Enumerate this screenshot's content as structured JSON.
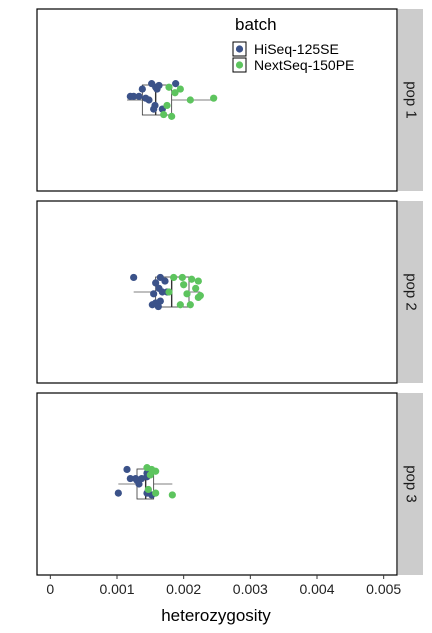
{
  "chart_data": {
    "type": "scatter",
    "subtype": "faceted jitter + boxplot",
    "xlabel": "heterozygosity",
    "xlim": [
      -0.0002,
      0.0052
    ],
    "xticks": [
      0,
      0.001,
      0.002,
      0.003,
      0.004,
      0.005
    ],
    "xtick_labels": [
      "0",
      "0.001",
      "0.002",
      "0.003",
      "0.004",
      "0.005"
    ],
    "grid": false,
    "legend": {
      "title": "batch",
      "placement": "top-right, inside first panel",
      "entries": [
        {
          "label": "HiSeq-125SE",
          "color": "#3b5289"
        },
        {
          "label": "NextSeq-150PE",
          "color": "#5dc45e"
        }
      ]
    },
    "facets": [
      {
        "label": "pop 1",
        "box": {
          "q1": 0.00138,
          "median": 0.00158,
          "q3": 0.00182,
          "whisker_low": 0.00115,
          "whisker_high": 0.00245
        },
        "points": [
          {
            "series": "HiSeq-125SE",
            "x": 0.00138,
            "y": 0.44
          },
          {
            "series": "HiSeq-125SE",
            "x": 0.00158,
            "y": 0.43
          },
          {
            "series": "HiSeq-125SE",
            "x": 0.00163,
            "y": 0.42
          },
          {
            "series": "HiSeq-125SE",
            "x": 0.00152,
            "y": 0.41
          },
          {
            "series": "HiSeq-125SE",
            "x": 0.00188,
            "y": 0.41
          },
          {
            "series": "HiSeq-125SE",
            "x": 0.0016,
            "y": 0.44
          },
          {
            "series": "HiSeq-125SE",
            "x": 0.00143,
            "y": 0.49
          },
          {
            "series": "HiSeq-125SE",
            "x": 0.00133,
            "y": 0.48
          },
          {
            "series": "HiSeq-125SE",
            "x": 0.00125,
            "y": 0.48
          },
          {
            "series": "HiSeq-125SE",
            "x": 0.0012,
            "y": 0.48
          },
          {
            "series": "HiSeq-125SE",
            "x": 0.00148,
            "y": 0.5
          },
          {
            "series": "HiSeq-125SE",
            "x": 0.00157,
            "y": 0.53
          },
          {
            "series": "HiSeq-125SE",
            "x": 0.00155,
            "y": 0.55
          },
          {
            "series": "HiSeq-125SE",
            "x": 0.00168,
            "y": 0.55
          },
          {
            "series": "NextSeq-150PE",
            "x": 0.00178,
            "y": 0.43
          },
          {
            "series": "NextSeq-150PE",
            "x": 0.00195,
            "y": 0.44
          },
          {
            "series": "NextSeq-150PE",
            "x": 0.00187,
            "y": 0.46
          },
          {
            "series": "NextSeq-150PE",
            "x": 0.0021,
            "y": 0.5
          },
          {
            "series": "NextSeq-150PE",
            "x": 0.00245,
            "y": 0.49
          },
          {
            "series": "NextSeq-150PE",
            "x": 0.00175,
            "y": 0.53
          },
          {
            "series": "NextSeq-150PE",
            "x": 0.0017,
            "y": 0.58
          },
          {
            "series": "NextSeq-150PE",
            "x": 0.00182,
            "y": 0.59
          }
        ]
      },
      {
        "label": "pop 2",
        "box": {
          "q1": 0.00158,
          "median": 0.00182,
          "q3": 0.00208,
          "whisker_low": 0.00125,
          "whisker_high": 0.00225
        },
        "points": [
          {
            "series": "HiSeq-125SE",
            "x": 0.00125,
            "y": 0.42
          },
          {
            "series": "HiSeq-125SE",
            "x": 0.00165,
            "y": 0.42
          },
          {
            "series": "HiSeq-125SE",
            "x": 0.00158,
            "y": 0.45
          },
          {
            "series": "HiSeq-125SE",
            "x": 0.00172,
            "y": 0.44
          },
          {
            "series": "HiSeq-125SE",
            "x": 0.00163,
            "y": 0.48
          },
          {
            "series": "HiSeq-125SE",
            "x": 0.00155,
            "y": 0.51
          },
          {
            "series": "HiSeq-125SE",
            "x": 0.00175,
            "y": 0.5
          },
          {
            "series": "HiSeq-125SE",
            "x": 0.00168,
            "y": 0.5
          },
          {
            "series": "HiSeq-125SE",
            "x": 0.00165,
            "y": 0.55
          },
          {
            "series": "HiSeq-125SE",
            "x": 0.00158,
            "y": 0.56
          },
          {
            "series": "HiSeq-125SE",
            "x": 0.00162,
            "y": 0.58
          },
          {
            "series": "HiSeq-125SE",
            "x": 0.00153,
            "y": 0.57
          },
          {
            "series": "NextSeq-150PE",
            "x": 0.00185,
            "y": 0.42
          },
          {
            "series": "NextSeq-150PE",
            "x": 0.00198,
            "y": 0.42
          },
          {
            "series": "NextSeq-150PE",
            "x": 0.00212,
            "y": 0.43
          },
          {
            "series": "NextSeq-150PE",
            "x": 0.00222,
            "y": 0.44
          },
          {
            "series": "NextSeq-150PE",
            "x": 0.002,
            "y": 0.46
          },
          {
            "series": "NextSeq-150PE",
            "x": 0.00218,
            "y": 0.48
          },
          {
            "series": "NextSeq-150PE",
            "x": 0.00178,
            "y": 0.5
          },
          {
            "series": "NextSeq-150PE",
            "x": 0.00205,
            "y": 0.51
          },
          {
            "series": "NextSeq-150PE",
            "x": 0.00225,
            "y": 0.52
          },
          {
            "series": "NextSeq-150PE",
            "x": 0.00222,
            "y": 0.53
          },
          {
            "series": "NextSeq-150PE",
            "x": 0.00195,
            "y": 0.57
          },
          {
            "series": "NextSeq-150PE",
            "x": 0.0021,
            "y": 0.57
          }
        ]
      },
      {
        "label": "pop 3",
        "box": {
          "q1": 0.0013,
          "median": 0.00143,
          "q3": 0.00155,
          "whisker_low": 0.00102,
          "whisker_high": 0.00183
        },
        "points": [
          {
            "series": "HiSeq-125SE",
            "x": 0.00102,
            "y": 0.55
          },
          {
            "series": "HiSeq-125SE",
            "x": 0.00145,
            "y": 0.55
          },
          {
            "series": "HiSeq-125SE",
            "x": 0.00152,
            "y": 0.56
          },
          {
            "series": "HiSeq-125SE",
            "x": 0.0013,
            "y": 0.48
          },
          {
            "series": "HiSeq-125SE",
            "x": 0.0012,
            "y": 0.47
          },
          {
            "series": "HiSeq-125SE",
            "x": 0.00128,
            "y": 0.47
          },
          {
            "series": "HiSeq-125SE",
            "x": 0.00137,
            "y": 0.47
          },
          {
            "series": "HiSeq-125SE",
            "x": 0.00145,
            "y": 0.46
          },
          {
            "series": "HiSeq-125SE",
            "x": 0.00145,
            "y": 0.44
          },
          {
            "series": "HiSeq-125SE",
            "x": 0.00133,
            "y": 0.5
          },
          {
            "series": "HiSeq-125SE",
            "x": 0.00115,
            "y": 0.42
          },
          {
            "series": "NextSeq-150PE",
            "x": 0.00158,
            "y": 0.55
          },
          {
            "series": "NextSeq-150PE",
            "x": 0.00183,
            "y": 0.56
          },
          {
            "series": "NextSeq-150PE",
            "x": 0.00147,
            "y": 0.53
          },
          {
            "series": "NextSeq-150PE",
            "x": 0.0015,
            "y": 0.45
          },
          {
            "series": "NextSeq-150PE",
            "x": 0.00158,
            "y": 0.43
          },
          {
            "series": "NextSeq-150PE",
            "x": 0.00152,
            "y": 0.42
          },
          {
            "series": "NextSeq-150PE",
            "x": 0.00145,
            "y": 0.41
          }
        ]
      }
    ]
  }
}
